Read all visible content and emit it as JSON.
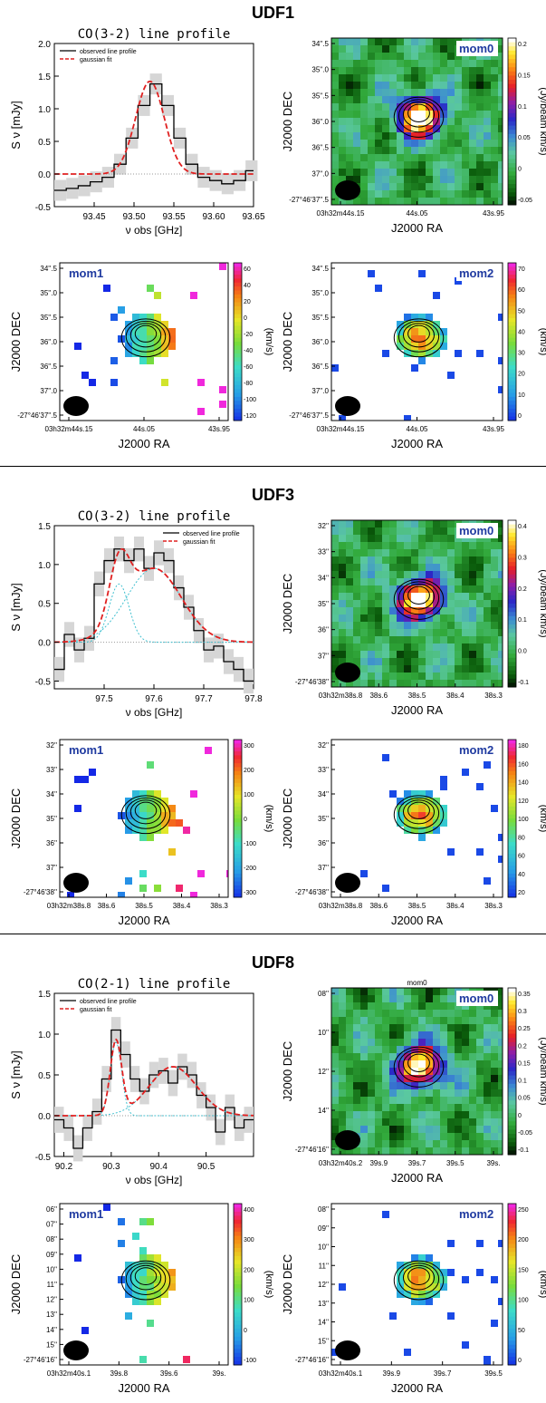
{
  "sources": [
    {
      "title": "UDF1",
      "spectrum": {
        "title": "CO(3-2) line profile",
        "legend": [
          "observed line profile",
          "gaussian fit"
        ],
        "xlabel": "ν obs [GHz]",
        "ylabel": "S ν [mJy]",
        "xticks": [
          "93.45",
          "93.50",
          "93.55",
          "93.60",
          "93.65"
        ],
        "yticks": [
          "-0.5",
          "0.0",
          "0.5",
          "1.0",
          "1.5",
          "2.0"
        ],
        "xlim": [
          93.4,
          93.65
        ],
        "ylim": [
          -0.5,
          2.0
        ],
        "steps": [
          [
            93.4,
            -0.25
          ],
          [
            93.415,
            -0.22
          ],
          [
            93.43,
            -0.18
          ],
          [
            93.445,
            -0.12
          ],
          [
            93.46,
            -0.05
          ],
          [
            93.475,
            0.15
          ],
          [
            93.49,
            0.55
          ],
          [
            93.505,
            1.05
          ],
          [
            93.52,
            1.38
          ],
          [
            93.535,
            1.05
          ],
          [
            93.55,
            0.55
          ],
          [
            93.565,
            0.15
          ],
          [
            93.58,
            -0.05
          ],
          [
            93.595,
            -0.1
          ],
          [
            93.61,
            -0.15
          ],
          [
            93.625,
            -0.1
          ],
          [
            93.64,
            0.05
          ]
        ],
        "gauss": [
          {
            "amp": 1.42,
            "mu": 93.52,
            "sig": 0.018
          }
        ],
        "gauss_offset": 0.0
      },
      "maps": [
        {
          "label": "mom0",
          "cbar_unit": "(Jy/beam km/s)",
          "cbar_ticks": [
            "0.2",
            "0.15",
            "0.1",
            "0.05",
            "0",
            "-0.05"
          ],
          "cbar_type": "mom0",
          "dec_ticks": [
            "34''.5",
            "35''.0",
            "35''.5",
            "36''.0",
            "36''.5",
            "37''.0",
            "-27°46'37''.5"
          ],
          "ra_ticks": [
            "03h32m44s.15",
            "44s.05",
            "43s.95"
          ],
          "xlabel": "J2000 RA",
          "ylabel": "J2000 DEC"
        },
        {
          "label": "mom1",
          "cbar_unit": "(km/s)",
          "cbar_ticks": [
            "60",
            "40",
            "20",
            "0",
            "-20",
            "-40",
            "-60",
            "-80",
            "-100",
            "-120"
          ],
          "cbar_type": "mom1",
          "dec_ticks": [
            "34''.5",
            "35''.0",
            "35''.5",
            "36''.0",
            "36''.5",
            "37''.0",
            "-27°46'37''.5"
          ],
          "ra_ticks": [
            "03h32m44s.15",
            "44s.05",
            "43s.95"
          ],
          "xlabel": "J2000 RA",
          "ylabel": "J2000 DEC"
        },
        {
          "label": "mom2",
          "cbar_unit": "(km/s)",
          "cbar_ticks": [
            "70",
            "60",
            "50",
            "40",
            "30",
            "20",
            "10",
            "0"
          ],
          "cbar_type": "mom2",
          "dec_ticks": [
            "34''.5",
            "35''.0",
            "35''.5",
            "36''.0",
            "36''.5",
            "37''.0",
            "-27°46'37''.5"
          ],
          "ra_ticks": [
            "03h32m44s.15",
            "44s.05",
            "43s.95"
          ],
          "xlabel": "J2000 RA",
          "ylabel": "J2000 DEC"
        }
      ]
    },
    {
      "title": "UDF3",
      "spectrum": {
        "title": "CO(3-2) line profile",
        "legend": [
          "observed line profile",
          "gaussian fit"
        ],
        "xlabel": "ν obs [GHz]",
        "ylabel": "S ν [mJy]",
        "xticks": [
          "97.5",
          "97.6",
          "97.7",
          "97.8"
        ],
        "yticks": [
          "-0.5",
          "0.0",
          "0.5",
          "1.0",
          "1.5"
        ],
        "xlim": [
          97.4,
          97.8
        ],
        "ylim": [
          -0.6,
          1.5
        ],
        "steps": [
          [
            97.4,
            -0.35
          ],
          [
            97.42,
            0.1
          ],
          [
            97.44,
            -0.1
          ],
          [
            97.46,
            0.05
          ],
          [
            97.48,
            0.75
          ],
          [
            97.5,
            1.05
          ],
          [
            97.52,
            1.2
          ],
          [
            97.54,
            1.05
          ],
          [
            97.56,
            1.2
          ],
          [
            97.58,
            0.95
          ],
          [
            97.6,
            1.15
          ],
          [
            97.62,
            1.05
          ],
          [
            97.64,
            0.7
          ],
          [
            97.66,
            0.45
          ],
          [
            97.68,
            0.15
          ],
          [
            97.7,
            -0.1
          ],
          [
            97.72,
            -0.05
          ],
          [
            97.74,
            -0.25
          ],
          [
            97.76,
            -0.35
          ],
          [
            97.78,
            -0.5
          ]
        ],
        "gauss": [
          {
            "amp": 0.75,
            "mu": 97.53,
            "sig": 0.02
          },
          {
            "amp": 0.95,
            "mu": 97.6,
            "sig": 0.055
          }
        ],
        "gauss_offset": 0.0
      },
      "maps": [
        {
          "label": "mom0",
          "cbar_unit": "(Jy/beam km/s)",
          "cbar_ticks": [
            "0.4",
            "0.3",
            "0.2",
            "0.1",
            "0.0",
            "-0.1"
          ],
          "cbar_type": "mom0",
          "dec_ticks": [
            "32''",
            "33''",
            "34''",
            "35''",
            "36''",
            "37''",
            "-27°46'38''"
          ],
          "ra_ticks": [
            "03h32m38s.8",
            "38s.6",
            "38s.5",
            "38s.4",
            "38s.3"
          ],
          "xlabel": "J2000 RA",
          "ylabel": "J2000 DEC"
        },
        {
          "label": "mom1",
          "cbar_unit": "(km/s)",
          "cbar_ticks": [
            "300",
            "200",
            "100",
            "0",
            "-100",
            "-200",
            "-300"
          ],
          "cbar_type": "mom1",
          "dec_ticks": [
            "32''",
            "33''",
            "34''",
            "35''",
            "36''",
            "37''",
            "-27°46'38''"
          ],
          "ra_ticks": [
            "03h32m38s.8",
            "38s.6",
            "38s.5",
            "38s.4",
            "38s.3"
          ],
          "xlabel": "J2000 RA",
          "ylabel": "J2000 DEC"
        },
        {
          "label": "mom2",
          "cbar_unit": "(km/s)",
          "cbar_ticks": [
            "180",
            "160",
            "140",
            "120",
            "100",
            "80",
            "60",
            "40",
            "20"
          ],
          "cbar_type": "mom2",
          "dec_ticks": [
            "32''",
            "33''",
            "34''",
            "35''",
            "36''",
            "37''",
            "-27°46'38''"
          ],
          "ra_ticks": [
            "03h32m38s.8",
            "38s.6",
            "38s.5",
            "38s.4",
            "38s.3"
          ],
          "xlabel": "J2000 RA",
          "ylabel": "J2000 DEC"
        }
      ]
    },
    {
      "title": "UDF8",
      "spectrum": {
        "title": "CO(2-1) line profile",
        "legend": [
          "observed line profile",
          "gaussian fit"
        ],
        "xlabel": "ν obs [GHz]",
        "ylabel": "S ν [mJy]",
        "xticks": [
          "90.2",
          "90.3",
          "90.4",
          "90.5"
        ],
        "yticks": [
          "-0.5",
          "0.0",
          "0.5",
          "1.0",
          "1.5"
        ],
        "xlim": [
          90.18,
          90.6
        ],
        "ylim": [
          -0.5,
          1.5
        ],
        "steps": [
          [
            90.18,
            -0.05
          ],
          [
            90.2,
            -0.15
          ],
          [
            90.22,
            -0.4
          ],
          [
            90.24,
            -0.15
          ],
          [
            90.26,
            0.05
          ],
          [
            90.28,
            0.45
          ],
          [
            90.3,
            1.05
          ],
          [
            90.32,
            0.75
          ],
          [
            90.34,
            0.45
          ],
          [
            90.36,
            0.3
          ],
          [
            90.38,
            0.5
          ],
          [
            90.4,
            0.55
          ],
          [
            90.42,
            0.4
          ],
          [
            90.44,
            0.6
          ],
          [
            90.46,
            0.5
          ],
          [
            90.48,
            0.25
          ],
          [
            90.5,
            0.1
          ],
          [
            90.52,
            -0.2
          ],
          [
            90.54,
            0.1
          ],
          [
            90.56,
            -0.15
          ],
          [
            90.58,
            -0.05
          ]
        ],
        "gauss": [
          {
            "amp": 0.9,
            "mu": 90.31,
            "sig": 0.012
          },
          {
            "amp": 0.6,
            "mu": 90.43,
            "sig": 0.05
          }
        ],
        "gauss_offset": 0.0
      },
      "maps": [
        {
          "label": "mom0",
          "top_label": "mom0",
          "cbar_unit": "(Jy/beam km/s)",
          "cbar_ticks": [
            "0.35",
            "0.3",
            "0.25",
            "0.2",
            "0.15",
            "0.1",
            "0.05",
            "0",
            "-0.05",
            "-0.1"
          ],
          "cbar_type": "mom0",
          "dec_ticks": [
            "08''",
            "10''",
            "12''",
            "14''",
            "-27°46'16''"
          ],
          "ra_ticks": [
            "03h32m40s.2",
            "39s.9",
            "39s.7",
            "39s.5",
            "39s."
          ],
          "xlabel": "J2000 RA",
          "ylabel": "J2000 DEC"
        },
        {
          "label": "mom1",
          "cbar_unit": "(km/s)",
          "cbar_ticks": [
            "400",
            "300",
            "200",
            "100",
            "0",
            "-100"
          ],
          "cbar_type": "mom1",
          "dec_ticks": [
            "06''",
            "07''",
            "08''",
            "09''",
            "10''",
            "11''",
            "12''",
            "13''",
            "14''",
            "15''",
            "-27°46'16''"
          ],
          "ra_ticks": [
            "03h32m40s.1",
            "39s.8",
            "39s.6",
            "39s."
          ],
          "xlabel": "J2000 RA",
          "ylabel": "J2000 DEC"
        },
        {
          "label": "mom2",
          "cbar_unit": "(km/s)",
          "cbar_ticks": [
            "250",
            "200",
            "150",
            "100",
            "50",
            "0"
          ],
          "cbar_type": "mom2",
          "dec_ticks": [
            "08''",
            "09''",
            "10''",
            "11''",
            "12''",
            "13''",
            "14''",
            "15''",
            "-27°46'16''"
          ],
          "ra_ticks": [
            "03h32m40s.1",
            "39s.9",
            "39s.7",
            "39s.5"
          ],
          "xlabel": "J2000 RA",
          "ylabel": "J2000 DEC"
        }
      ]
    }
  ]
}
